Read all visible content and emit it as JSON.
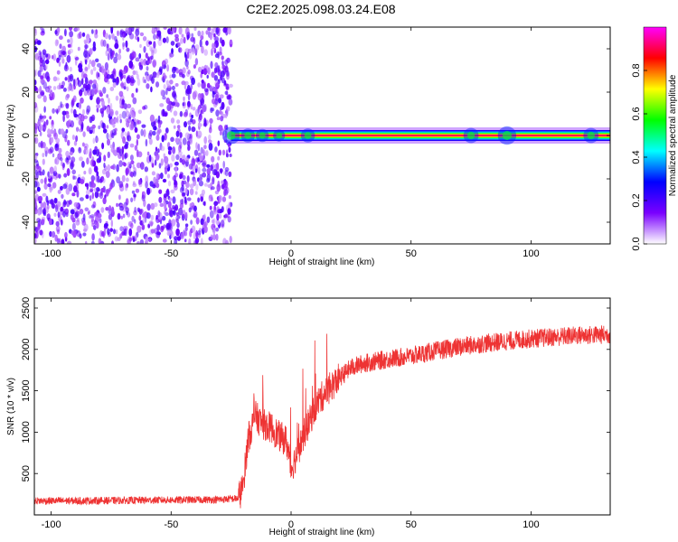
{
  "title": "C2E2.2025.098.03.24.E08",
  "chart_data": [
    {
      "type": "heatmap",
      "xlabel": "Height of straight line (km)",
      "ylabel": "Frequency (Hz)",
      "xlim": [
        -107,
        133
      ],
      "ylim": [
        -50,
        50
      ],
      "x_ticks": [
        -100,
        -50,
        0,
        50,
        100
      ],
      "y_ticks": [
        -40,
        -20,
        0,
        20,
        40
      ],
      "colorbar": {
        "label": "Normalized spectral amplitude",
        "range": [
          0,
          1
        ],
        "ticks": [
          0.0,
          0.2,
          0.4,
          0.6,
          0.8
        ],
        "tick_labels": [
          "0.0",
          "0.2",
          "0.4",
          "0.6",
          "0.8"
        ],
        "colormap": [
          "#ffffff",
          "#7a00ff",
          "#0000ff",
          "#00ffff",
          "#00ff00",
          "#ffff00",
          "#ff0000",
          "#ff00ff"
        ]
      },
      "noise_region": {
        "x_range": [
          -107,
          -25
        ],
        "freq_range": [
          -50,
          50
        ],
        "amplitude": [
          0.05,
          0.3
        ]
      },
      "signal_band": {
        "x_range": [
          -25,
          133
        ],
        "center_freq": 0,
        "amplitude": 0.9
      }
    },
    {
      "type": "line",
      "xlabel": "Height of straight line (km)",
      "ylabel": "SNR (10 * v/v)",
      "xlim": [
        -107,
        133
      ],
      "ylim": [
        0,
        2620
      ],
      "x_ticks": [
        -100,
        -50,
        0,
        50,
        100
      ],
      "y_ticks": [
        500,
        1000,
        1500,
        2000,
        2500
      ],
      "color": "#ee3333",
      "series": [
        {
          "x": [
            -107,
            -90,
            -70,
            -50,
            -30,
            -22,
            -20,
            -18,
            -15,
            -12,
            -8,
            -5,
            -2,
            0,
            2,
            5,
            8,
            10,
            12,
            15,
            20,
            25,
            30,
            40,
            50,
            60,
            70,
            80,
            90,
            100,
            110,
            120,
            133
          ],
          "values": [
            170,
            170,
            175,
            180,
            185,
            200,
            350,
            900,
            1200,
            1100,
            1050,
            950,
            900,
            550,
            700,
            950,
            1150,
            1300,
            1400,
            1500,
            1650,
            1780,
            1830,
            1880,
            1920,
            1980,
            2030,
            2070,
            2100,
            2130,
            2150,
            2170,
            2180
          ]
        }
      ]
    }
  ]
}
